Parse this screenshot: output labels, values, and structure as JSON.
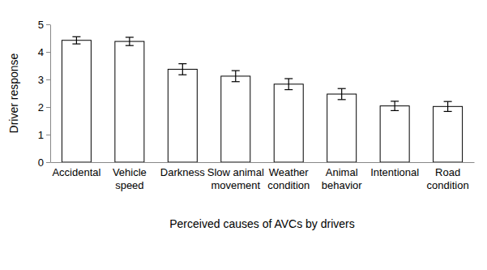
{
  "chart_data": {
    "type": "bar",
    "categories": [
      "Accidental",
      "Vehicle speed",
      "Darkness",
      "Slow animal movement",
      "Weather condition",
      "Animal behavior",
      "Intentional",
      "Road condition"
    ],
    "values": [
      4.42,
      4.38,
      3.37,
      3.12,
      2.83,
      2.47,
      2.04,
      2.02
    ],
    "errors": [
      0.13,
      0.15,
      0.2,
      0.2,
      0.2,
      0.2,
      0.17,
      0.18
    ],
    "color": "#ffffff",
    "x_label": "Perceived causes of AVCs by drivers",
    "y_label": "Driver response",
    "ylim": [
      0,
      5
    ],
    "yticks": [
      0,
      1,
      2,
      3,
      4,
      5
    ],
    "grid": false
  }
}
